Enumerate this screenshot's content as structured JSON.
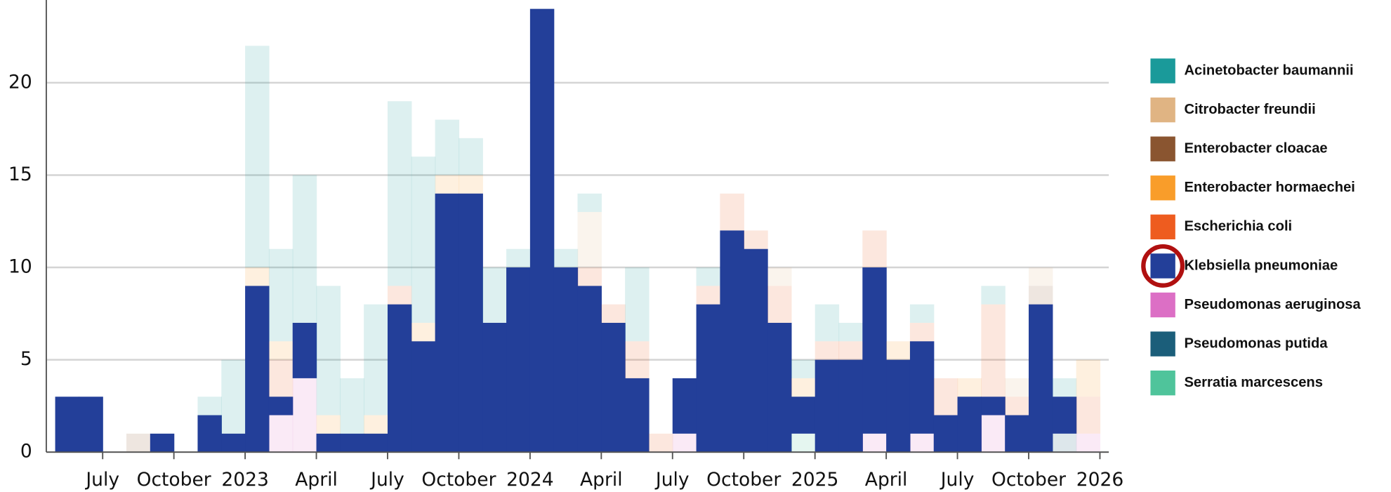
{
  "chart_data": {
    "type": "stacked-bar",
    "x": [
      "2022-05",
      "2022-06",
      "2022-07",
      "2022-08",
      "2022-09",
      "2022-10",
      "2022-11",
      "2022-12",
      "2023-01",
      "2023-02",
      "2023-03",
      "2023-04",
      "2023-05",
      "2023-06",
      "2023-07",
      "2023-08",
      "2023-09",
      "2023-10",
      "2023-11",
      "2023-12",
      "2024-01",
      "2024-02",
      "2024-03",
      "2024-04",
      "2024-05",
      "2024-06",
      "2024-07",
      "2024-08",
      "2024-09",
      "2024-10",
      "2024-11",
      "2024-12",
      "2025-01",
      "2025-02",
      "2025-03",
      "2025-04",
      "2025-05",
      "2025-06",
      "2025-07",
      "2025-08",
      "2025-09",
      "2025-10",
      "2025-11",
      "2025-12"
    ],
    "series": [
      {
        "name": "Acinetobacter baumannii",
        "color": "#1a9a9a",
        "values": [
          0,
          0,
          0,
          0,
          0,
          0,
          1,
          4,
          12,
          5,
          8,
          7,
          3,
          6,
          10,
          9,
          3,
          2,
          3,
          1,
          0,
          1,
          1,
          0,
          4,
          0,
          0,
          1,
          0,
          0,
          0,
          1,
          2,
          1,
          0,
          0,
          1,
          0,
          0,
          1,
          0,
          0,
          1,
          0
        ]
      },
      {
        "name": "Citrobacter freundii",
        "color": "#e0b483",
        "values": [
          0,
          0,
          0,
          0,
          0,
          0,
          0,
          0,
          0,
          0,
          0,
          0,
          0,
          0,
          0,
          0,
          0,
          0,
          0,
          0,
          0,
          0,
          3,
          0,
          0,
          0,
          0,
          0,
          0,
          0,
          1,
          0,
          0,
          0,
          0,
          0,
          0,
          0,
          0,
          0,
          1,
          1,
          0,
          0
        ]
      },
      {
        "name": "Enterobacter cloacae",
        "color": "#8a5530",
        "values": [
          0,
          0,
          0,
          1,
          0,
          0,
          0,
          0,
          0,
          0,
          0,
          0,
          0,
          0,
          0,
          0,
          0,
          0,
          0,
          0,
          0,
          0,
          0,
          0,
          0,
          0,
          0,
          0,
          0,
          0,
          0,
          0,
          0,
          0,
          0,
          0,
          0,
          0,
          0,
          0,
          0,
          1,
          0,
          0
        ]
      },
      {
        "name": "Enterobacter hormaechei",
        "color": "#f99d2a",
        "values": [
          0,
          0,
          0,
          0,
          0,
          0,
          0,
          0,
          1,
          1,
          0,
          1,
          0,
          1,
          0,
          1,
          1,
          1,
          0,
          0,
          0,
          0,
          0,
          0,
          0,
          0,
          0,
          0,
          0,
          0,
          0,
          1,
          0,
          0,
          0,
          1,
          0,
          0,
          1,
          0,
          0,
          0,
          0,
          2
        ]
      },
      {
        "name": "Escherichia coli",
        "color": "#ee5c1f",
        "values": [
          0,
          0,
          0,
          0,
          0,
          0,
          0,
          0,
          0,
          2,
          0,
          0,
          0,
          0,
          1,
          0,
          0,
          0,
          0,
          0,
          0,
          0,
          1,
          1,
          2,
          1,
          0,
          1,
          2,
          1,
          2,
          0,
          1,
          1,
          2,
          0,
          1,
          2,
          0,
          5,
          1,
          0,
          0,
          2
        ]
      },
      {
        "name": "Klebsiella pneumoniae",
        "color": "#233f99",
        "values": [
          3,
          3,
          0,
          0,
          1,
          0,
          2,
          1,
          9,
          1,
          3,
          1,
          1,
          1,
          8,
          6,
          14,
          14,
          7,
          10,
          24,
          10,
          9,
          7,
          4,
          0,
          3,
          8,
          12,
          11,
          7,
          2,
          5,
          5,
          9,
          5,
          5,
          2,
          3,
          1,
          2,
          8,
          2,
          0
        ]
      },
      {
        "name": "Pseudomonas aeruginosa",
        "color": "#dc6fc5",
        "values": [
          0,
          0,
          0,
          0,
          0,
          0,
          0,
          0,
          0,
          2,
          4,
          0,
          0,
          0,
          0,
          0,
          0,
          0,
          0,
          0,
          0,
          0,
          0,
          0,
          0,
          0,
          1,
          0,
          0,
          0,
          0,
          0,
          0,
          0,
          1,
          0,
          1,
          0,
          0,
          2,
          0,
          0,
          0,
          1
        ]
      },
      {
        "name": "Pseudomonas putida",
        "color": "#1b5e7a",
        "values": [
          0,
          0,
          0,
          0,
          0,
          0,
          0,
          0,
          0,
          0,
          0,
          0,
          0,
          0,
          0,
          0,
          0,
          0,
          0,
          0,
          0,
          0,
          0,
          0,
          0,
          0,
          0,
          0,
          0,
          0,
          0,
          0,
          0,
          0,
          0,
          0,
          0,
          0,
          0,
          0,
          0,
          0,
          1,
          0
        ]
      },
      {
        "name": "Serratia marcescens",
        "color": "#4fc49b",
        "values": [
          0,
          0,
          0,
          0,
          0,
          0,
          0,
          0,
          0,
          0,
          0,
          0,
          0,
          0,
          0,
          0,
          0,
          0,
          0,
          0,
          0,
          0,
          0,
          0,
          0,
          0,
          0,
          0,
          0,
          0,
          0,
          1,
          0,
          0,
          0,
          0,
          0,
          0,
          0,
          0,
          0,
          0,
          0,
          0
        ]
      }
    ],
    "highlighted": "Klebsiella pneumoniae",
    "xlim": [
      "2022-05",
      "2026-01"
    ],
    "xticks": [
      {
        "value": "2022-07",
        "label": "July"
      },
      {
        "value": "2022-10",
        "label": "October"
      },
      {
        "value": "2023-01",
        "label": "2023"
      },
      {
        "value": "2023-04",
        "label": "April"
      },
      {
        "value": "2023-07",
        "label": "July"
      },
      {
        "value": "2023-10",
        "label": "October"
      },
      {
        "value": "2024-01",
        "label": "2024"
      },
      {
        "value": "2024-04",
        "label": "April"
      },
      {
        "value": "2024-07",
        "label": "July"
      },
      {
        "value": "2024-10",
        "label": "October"
      },
      {
        "value": "2025-01",
        "label": "2025"
      },
      {
        "value": "2025-04",
        "label": "April"
      },
      {
        "value": "2025-07",
        "label": "July"
      },
      {
        "value": "2025-10",
        "label": "October"
      },
      {
        "value": "2026-01",
        "label": "2026"
      }
    ],
    "ylim": [
      0,
      24
    ],
    "yticks": [
      0,
      5,
      10,
      15,
      20
    ],
    "grid": true,
    "legend": "right"
  }
}
